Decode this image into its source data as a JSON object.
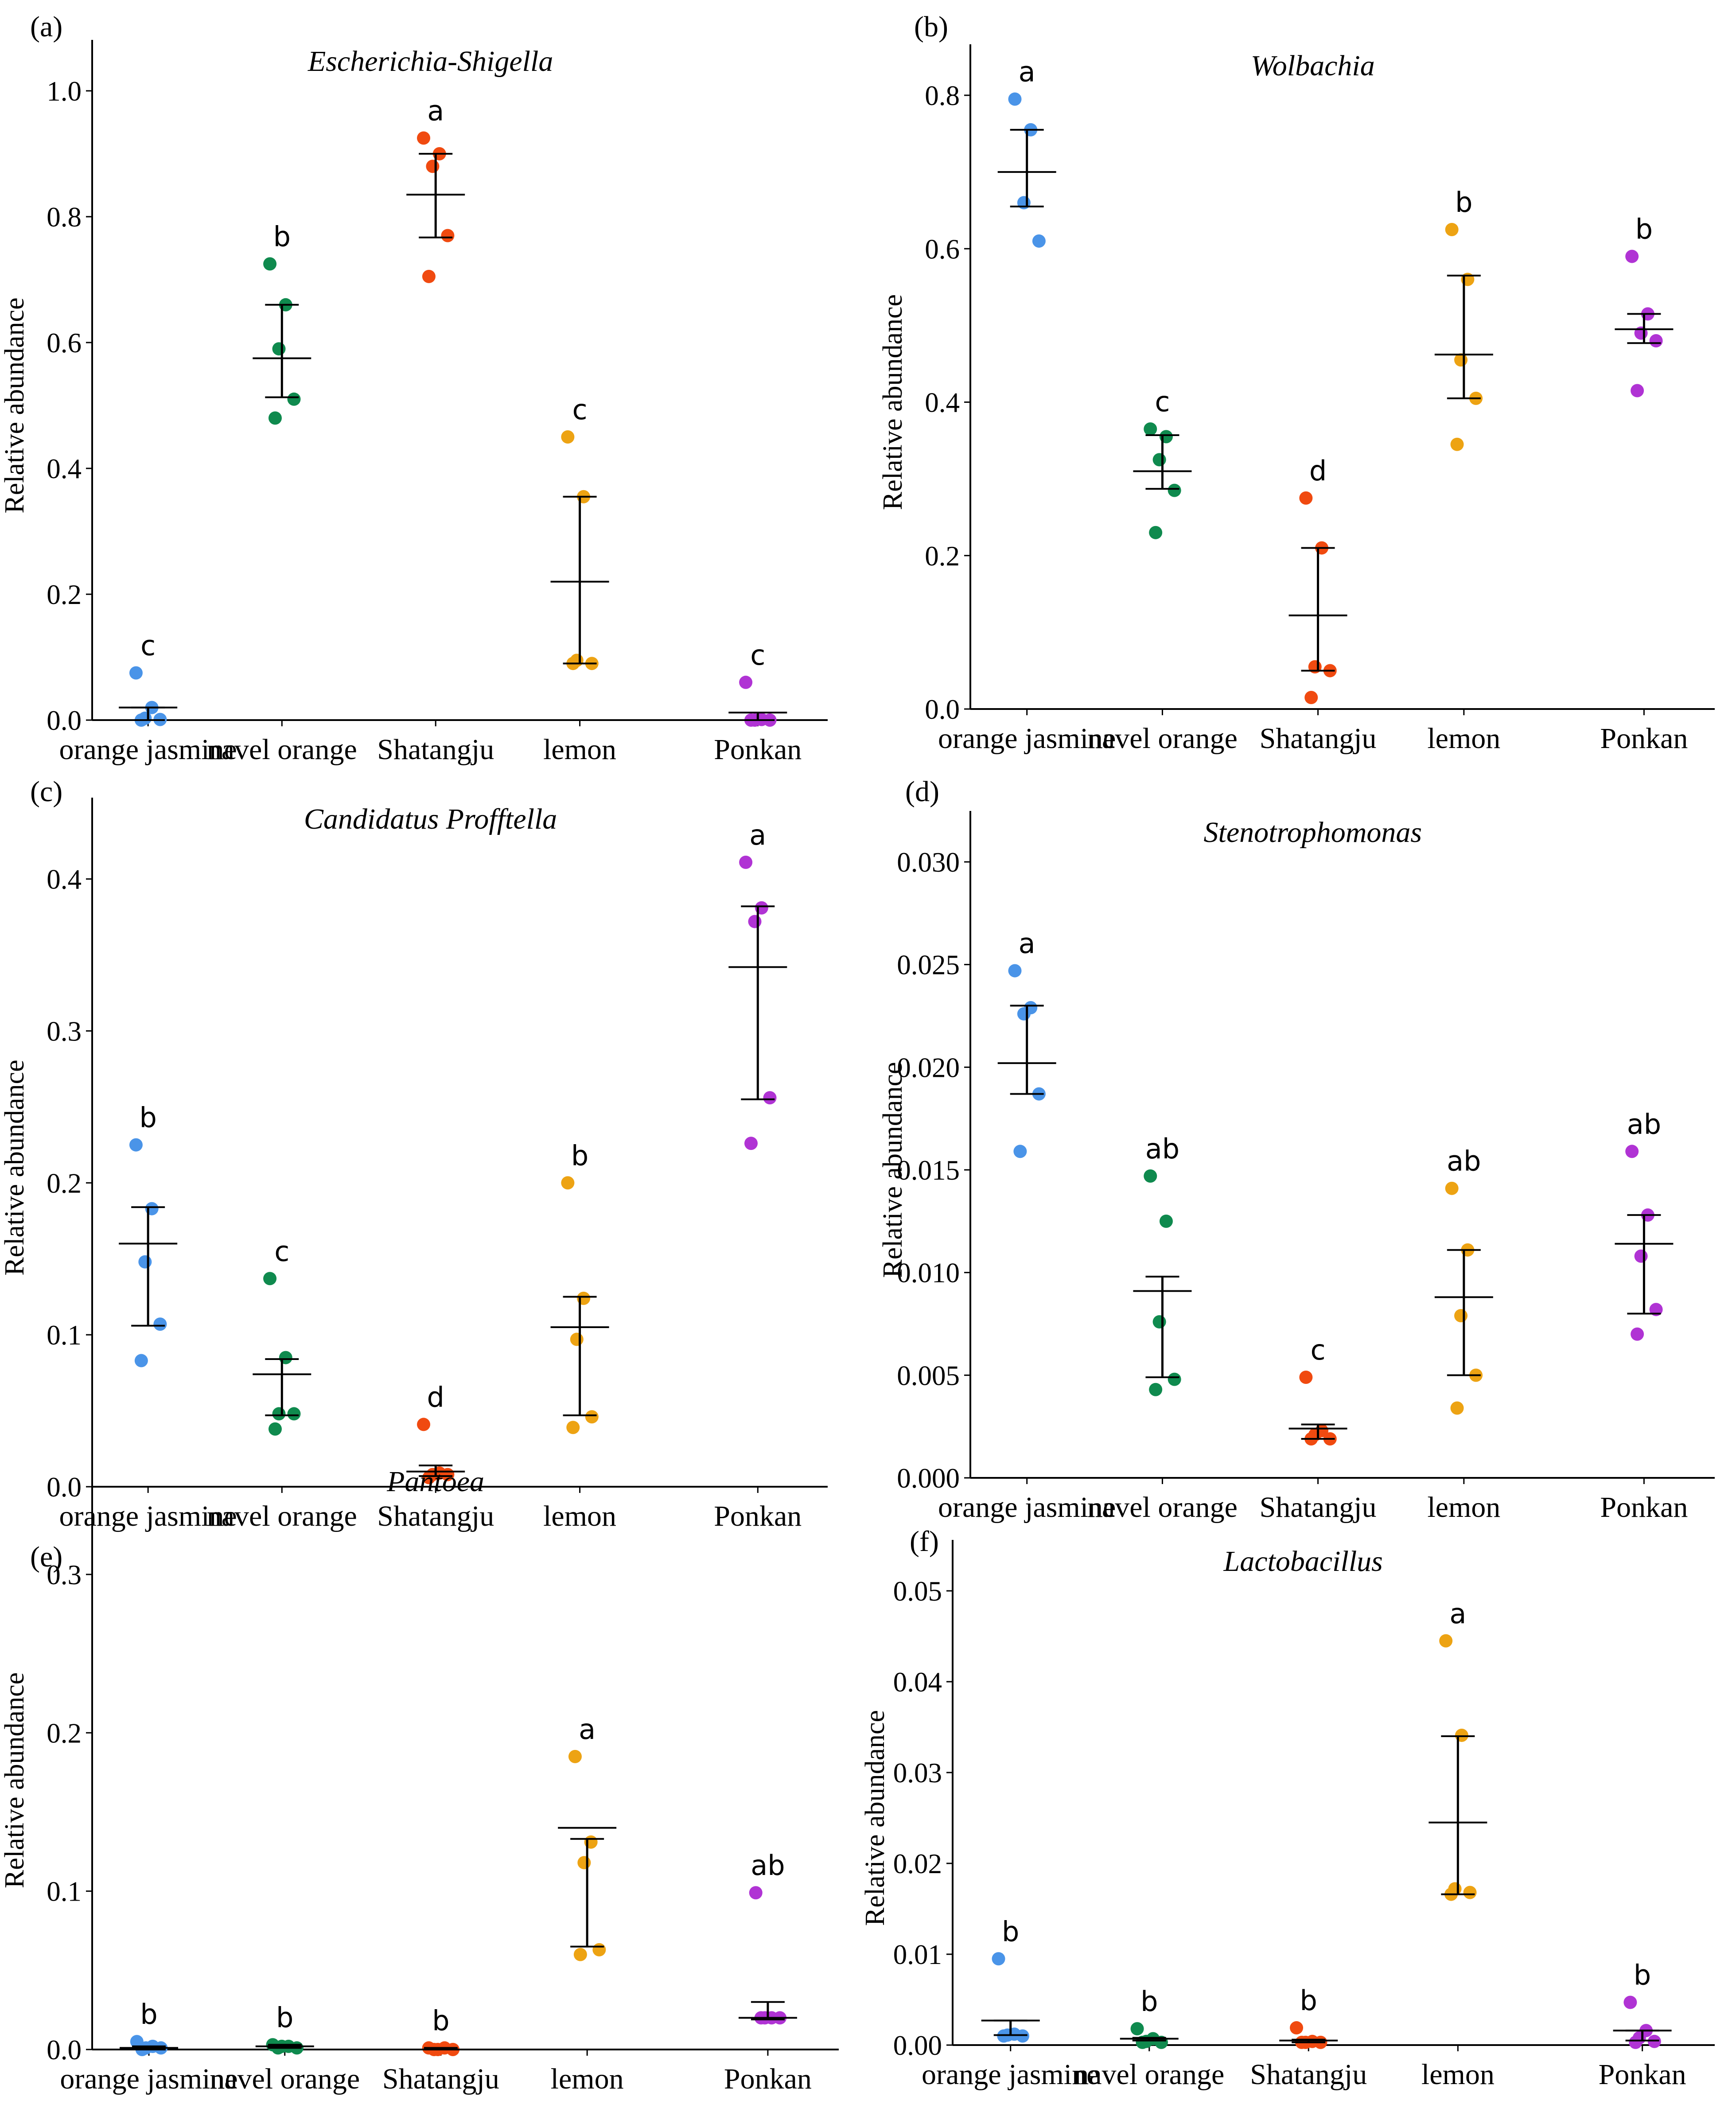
{
  "colors": {
    "orange jasmine": "#4a94e8",
    "navel orange": "#0f8a4e",
    "Shatangju": "#f04a10",
    "lemon": "#eda313",
    "Ponkan": "#b033d4",
    "axis": "#000000"
  },
  "chart_data": [
    {
      "panel": "(a)",
      "type": "scatter",
      "title": "Escherichia-Shigella",
      "xlabel": "",
      "ylabel": "Relative abundance",
      "categories": [
        "orange jasmine",
        "navel orange",
        "Shatangju",
        "lemon",
        "Ponkan"
      ],
      "ylim": [
        0,
        1.0
      ],
      "yticks": [
        0.0,
        0.2,
        0.4,
        0.6,
        0.8,
        1.0
      ],
      "ytick_labels": [
        "0.0",
        "0.2",
        "0.4",
        "0.6",
        "0.8",
        "1.0"
      ],
      "points": [
        [
          0.075,
          0.02,
          0.003,
          0.001,
          0.0
        ],
        [
          0.725,
          0.66,
          0.59,
          0.51,
          0.48
        ],
        [
          0.925,
          0.9,
          0.88,
          0.77,
          0.705
        ],
        [
          0.45,
          0.355,
          0.095,
          0.09,
          0.09
        ],
        [
          0.06,
          0.001,
          0.0,
          0.0,
          0.0
        ]
      ],
      "means": [
        0.02,
        0.575,
        0.835,
        0.22,
        0.012
      ],
      "errors": [
        [
          0.0,
          0.02
        ],
        [
          0.513,
          0.66
        ],
        [
          0.767,
          0.9
        ],
        [
          0.09,
          0.355
        ],
        [
          0.0,
          0.012
        ]
      ],
      "letters": [
        "c",
        "b",
        "a",
        "c",
        "c"
      ]
    },
    {
      "panel": "(b)",
      "type": "scatter",
      "title": "Wolbachia",
      "xlabel": "",
      "ylabel": "Relative abundance",
      "categories": [
        "orange jasmine",
        "navel orange",
        "Shatangju",
        "lemon",
        "Ponkan"
      ],
      "ylim": [
        0,
        0.8
      ],
      "yticks": [
        0.0,
        0.2,
        0.4,
        0.6,
        0.8
      ],
      "ytick_labels": [
        "0.0",
        "0.2",
        "0.4",
        "0.6",
        "0.8"
      ],
      "points": [
        [
          0.795,
          0.755,
          0.66,
          0.61
        ],
        [
          0.365,
          0.355,
          0.325,
          0.285,
          0.23
        ],
        [
          0.275,
          0.21,
          0.055,
          0.05,
          0.015
        ],
        [
          0.625,
          0.56,
          0.455,
          0.405,
          0.345
        ],
        [
          0.59,
          0.515,
          0.49,
          0.48,
          0.415
        ]
      ],
      "means": [
        0.7,
        0.31,
        0.122,
        0.462,
        0.495
      ],
      "errors": [
        [
          0.655,
          0.755
        ],
        [
          0.287,
          0.357
        ],
        [
          0.05,
          0.21
        ],
        [
          0.405,
          0.565
        ],
        [
          0.477,
          0.515
        ]
      ],
      "letters": [
        "a",
        "c",
        "d",
        "b",
        "b"
      ]
    },
    {
      "panel": "(c)",
      "type": "scatter",
      "title": "Candidatus Profftella",
      "xlabel": "",
      "ylabel": "Relative abundance",
      "categories": [
        "orange jasmine",
        "navel orange",
        "Shatangju",
        "lemon",
        "Ponkan"
      ],
      "ylim": [
        0,
        0.42
      ],
      "yticks": [
        0.0,
        0.1,
        0.2,
        0.3,
        0.4
      ],
      "ytick_labels": [
        "0.0",
        "0.1",
        "0.2",
        "0.3",
        "0.4"
      ],
      "points": [
        [
          0.225,
          0.183,
          0.148,
          0.107,
          0.083
        ],
        [
          0.137,
          0.085,
          0.048,
          0.048,
          0.038
        ],
        [
          0.041,
          0.009,
          0.008,
          0.008,
          0.006
        ],
        [
          0.2,
          0.124,
          0.097,
          0.046,
          0.039
        ],
        [
          0.411,
          0.381,
          0.372,
          0.256,
          0.226
        ]
      ],
      "means": [
        0.16,
        0.074,
        0.01,
        0.105,
        0.342
      ],
      "errors": [
        [
          0.106,
          0.184
        ],
        [
          0.047,
          0.084
        ],
        [
          0.007,
          0.014
        ],
        [
          0.047,
          0.125
        ],
        [
          0.255,
          0.382
        ]
      ],
      "letters": [
        "b",
        "c",
        "d",
        "b",
        "a"
      ]
    },
    {
      "panel": "(d)",
      "type": "scatter",
      "title": "Stenotrophomonas",
      "xlabel": "",
      "ylabel": "Relative abundance",
      "categories": [
        "orange jasmine",
        "navel orange",
        "Shatangju",
        "lemon",
        "Ponkan"
      ],
      "ylim": [
        0,
        0.03
      ],
      "yticks": [
        0.0,
        0.005,
        0.01,
        0.015,
        0.02,
        0.025,
        0.03
      ],
      "ytick_labels": [
        "0.000",
        "0.005",
        "0.010",
        "0.015",
        "0.020",
        "0.025",
        "0.030"
      ],
      "points": [
        [
          0.0247,
          0.0229,
          0.0226,
          0.0187,
          0.0159
        ],
        [
          0.0147,
          0.0125,
          0.0076,
          0.0048,
          0.0043
        ],
        [
          0.0049,
          0.0023,
          0.0021,
          0.0019,
          0.0019
        ],
        [
          0.0141,
          0.0111,
          0.0079,
          0.005,
          0.0034
        ],
        [
          0.0159,
          0.0128,
          0.0108,
          0.0082,
          0.007
        ]
      ],
      "means": [
        0.0202,
        0.0091,
        0.0024,
        0.0088,
        0.0114
      ],
      "errors": [
        [
          0.0187,
          0.023
        ],
        [
          0.0049,
          0.0098
        ],
        [
          0.0019,
          0.0026
        ],
        [
          0.005,
          0.0111
        ],
        [
          0.008,
          0.0128
        ]
      ],
      "letters": [
        "a",
        "ab",
        "c",
        "ab",
        "ab"
      ]
    },
    {
      "panel": "(e)",
      "type": "scatter",
      "title": "Pantoea",
      "xlabel": "",
      "ylabel": "Relative abundance",
      "categories": [
        "orange jasmine",
        "navel orange",
        "Shatangju",
        "lemon",
        "Ponkan"
      ],
      "ylim": [
        0,
        0.34
      ],
      "yticks": [
        0.0,
        0.1,
        0.2,
        0.3
      ],
      "ytick_labels": [
        "0.0",
        "0.1",
        "0.2",
        "0.3"
      ],
      "points": [
        [
          0.005,
          0.002,
          0.001,
          0.001,
          0.0
        ],
        [
          0.003,
          0.002,
          0.002,
          0.001,
          0.001
        ],
        [
          0.001,
          0.001,
          0.0,
          0.0,
          0.0
        ],
        [
          0.185,
          0.131,
          0.118,
          0.063,
          0.06
        ],
        [
          0.099,
          0.02,
          0.02,
          0.02,
          0.02
        ]
      ],
      "means": [
        0.001,
        0.002,
        0.0,
        0.14,
        0.02
      ],
      "errors": [
        [
          0.0,
          0.002
        ],
        [
          0.001,
          0.003
        ],
        [
          0.0,
          0.001
        ],
        [
          0.065,
          0.133
        ],
        [
          0.019,
          0.03
        ]
      ],
      "letters": [
        "b",
        "b",
        "b",
        "a",
        "ab"
      ]
    },
    {
      "panel": "(f)",
      "type": "scatter",
      "title": "Lactobacillus",
      "xlabel": "",
      "ylabel": "Relative abundance",
      "categories": [
        "orange jasmine",
        "navel orange",
        "Shatangju",
        "lemon",
        "Ponkan"
      ],
      "ylim": [
        0,
        0.05
      ],
      "yticks": [
        0.0,
        0.01,
        0.02,
        0.03,
        0.04,
        0.05
      ],
      "ytick_labels": [
        "0.00",
        "0.01",
        "0.02",
        "0.03",
        "0.04",
        "0.05"
      ],
      "points": [
        [
          0.0095,
          0.0012,
          0.0011,
          0.001,
          0.001
        ],
        [
          0.0018,
          0.0007,
          0.0004,
          0.0003,
          0.0003
        ],
        [
          0.0019,
          0.0004,
          0.0003,
          0.0003,
          0.0003
        ],
        [
          0.0445,
          0.0341,
          0.0172,
          0.0168,
          0.0166
        ],
        [
          0.0047,
          0.0016,
          0.0008,
          0.0004,
          0.0003
        ]
      ],
      "means": [
        0.0027,
        0.0007,
        0.0005,
        0.0245,
        0.0016
      ],
      "errors": [
        [
          0.0011,
          0.0027
        ],
        [
          0.0005,
          0.0008
        ],
        [
          0.0003,
          0.0006
        ],
        [
          0.0166,
          0.034
        ],
        [
          0.0005,
          0.0016
        ]
      ],
      "letters": [
        "b",
        "b",
        "b",
        "a",
        "b"
      ]
    }
  ]
}
